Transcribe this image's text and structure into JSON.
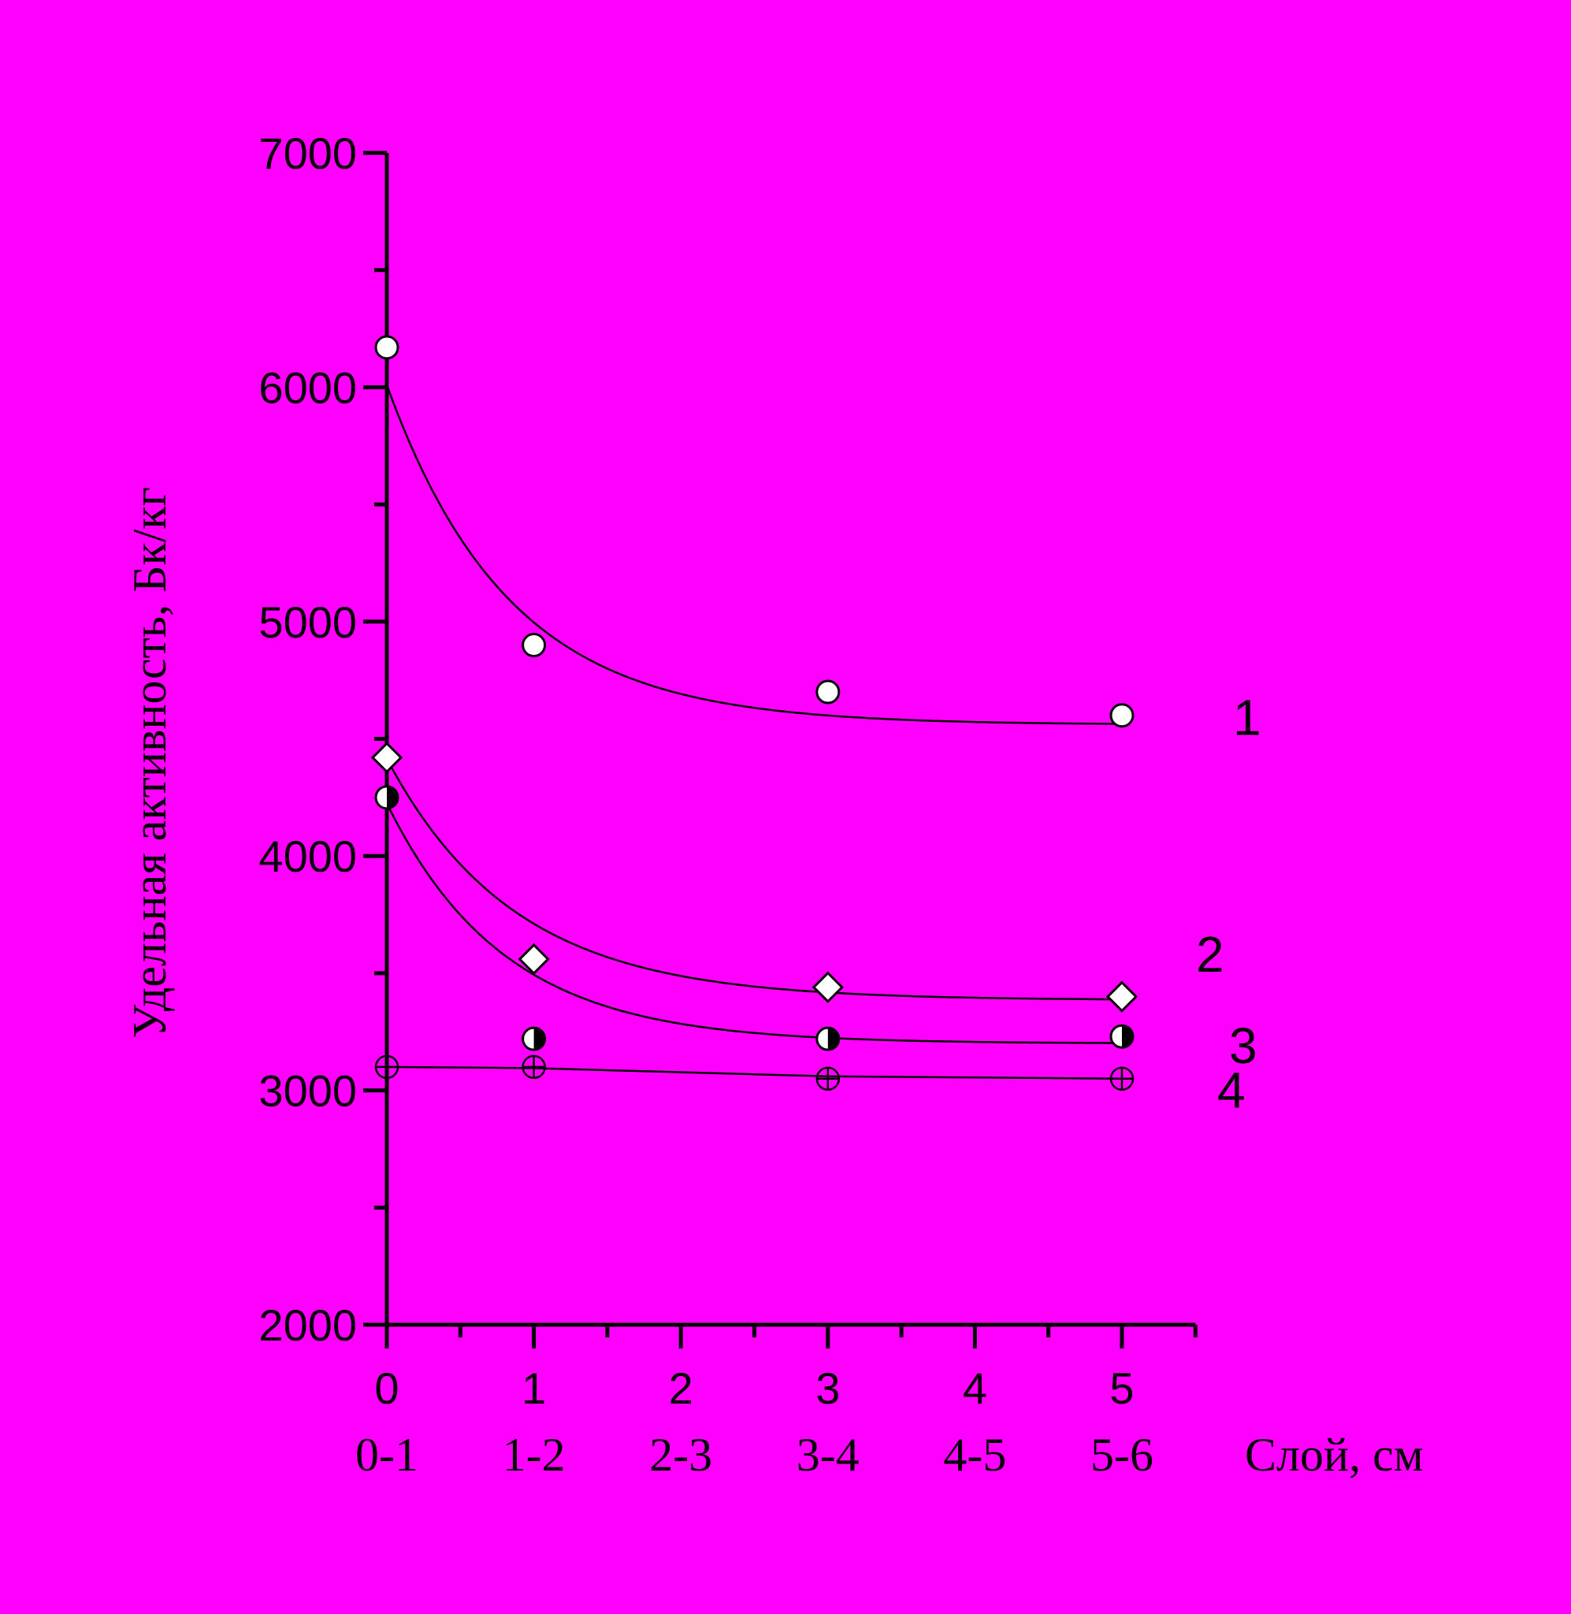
{
  "chart_data": {
    "type": "scatter",
    "xlabel": "Слой, см",
    "ylabel": "Удельная активность, Бк/кг",
    "xlim": [
      0,
      5.5
    ],
    "ylim": [
      2000,
      7000
    ],
    "x_ticks": [
      "0",
      "1",
      "2",
      "3",
      "4",
      "5"
    ],
    "x_tick_values": [
      0,
      1,
      2,
      3,
      4,
      5
    ],
    "x_categories": [
      "0-1",
      "1-2",
      "2-3",
      "3-4",
      "4-5",
      "5-6"
    ],
    "y_ticks": [
      "2000",
      "3000",
      "4000",
      "5000",
      "6000",
      "7000"
    ],
    "y_tick_values": [
      2000,
      3000,
      4000,
      5000,
      6000,
      7000
    ],
    "grid": false,
    "series": [
      {
        "name": "1",
        "marker": "open-circle",
        "x": [
          0,
          1,
          3,
          5
        ],
        "y": [
          6170,
          4900,
          4700,
          4600
        ],
        "fit": {
          "y0": 1450,
          "k": 1.2,
          "c": 4560
        }
      },
      {
        "name": "2",
        "marker": "open-diamond",
        "x": [
          0,
          1,
          3,
          5
        ],
        "y": [
          4420,
          3560,
          3440,
          3400
        ],
        "fit": {
          "y0": 1030,
          "k": 1.15,
          "c": 3385
        }
      },
      {
        "name": "3",
        "marker": "half-filled-circle",
        "x": [
          0,
          1,
          3,
          5
        ],
        "y": [
          4250,
          3220,
          3220,
          3230
        ],
        "fit": {
          "y0": 1025,
          "k": 1.25,
          "c": 3200
        }
      },
      {
        "name": "4",
        "marker": "crossed-circle",
        "x": [
          0,
          1,
          3,
          5
        ],
        "y": [
          3100,
          3100,
          3050,
          3050
        ],
        "line": [
          [
            0,
            3100
          ],
          [
            1,
            3095
          ],
          [
            3,
            3060
          ],
          [
            5,
            3050
          ]
        ]
      }
    ]
  }
}
